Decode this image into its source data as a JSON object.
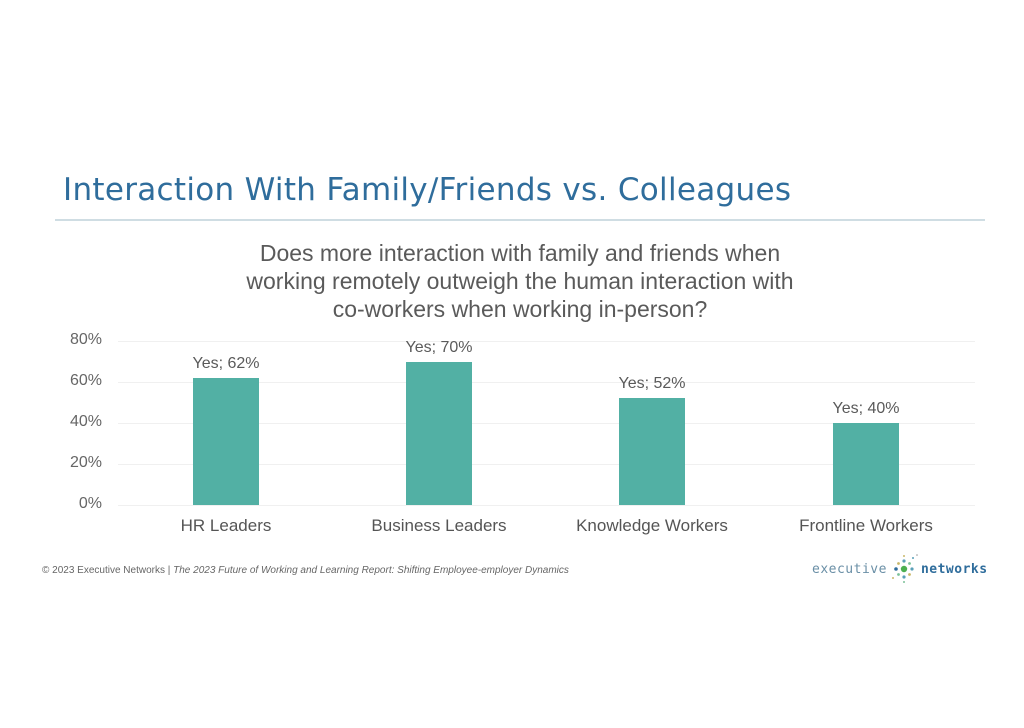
{
  "slide": {
    "title": "Interaction With Family/Friends vs. Colleagues",
    "question_lines": [
      "Does more interaction with family and friends when",
      "working remotely outweigh the human interaction with",
      "co-workers when working in-person?"
    ]
  },
  "footer": {
    "copyright": "© 2023 Executive Networks | ",
    "report": "The 2023 Future of Working and Learning Report: Shifting Employee-employer Dynamics"
  },
  "logo": {
    "word1": "executive",
    "word2": "networks",
    "icon": "network-dots-icon"
  },
  "colors": {
    "title": "#2f6d9c",
    "bar": "#52b0a4",
    "rule": "#cfdde3"
  },
  "chart_data": {
    "type": "bar",
    "title": "Does more interaction with family and friends when working remotely outweigh the human interaction with co-workers when working in-person?",
    "categories": [
      "HR Leaders",
      "Business Leaders",
      "Knowledge Workers",
      "Frontline Workers"
    ],
    "series": [
      {
        "name": "Yes",
        "values": [
          62,
          70,
          52,
          40
        ]
      }
    ],
    "data_labels": [
      "Yes; 62%",
      "Yes; 70%",
      "Yes; 52%",
      "Yes; 40%"
    ],
    "xlabel": "",
    "ylabel": "",
    "ylim": [
      0,
      80
    ],
    "yticks": [
      "0%",
      "20%",
      "40%",
      "60%",
      "80%"
    ],
    "grid": true,
    "legend": "none"
  }
}
